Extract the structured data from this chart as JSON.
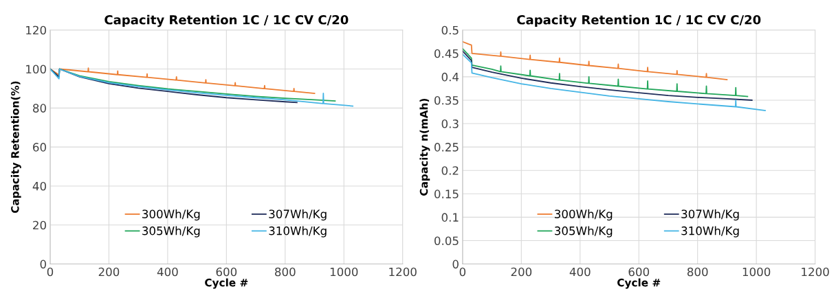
{
  "chart_data": [
    {
      "type": "line",
      "title": "Capacity Retention 1C / 1C CV C/20",
      "xlabel": "Cycle #",
      "ylabel": "Capacity Retention(%)",
      "xlim": [
        0,
        1200
      ],
      "xticks": [
        0,
        200,
        400,
        600,
        800,
        1000,
        1200
      ],
      "ylim": [
        0,
        120
      ],
      "yticks": [
        0,
        20,
        40,
        60,
        80,
        100,
        120
      ],
      "grid": true,
      "legend": "bottom",
      "marker": "none",
      "line_style": "solid",
      "series": [
        {
          "name": "300Wh/Kg",
          "color": "#ed7d31",
          "x": [
            0,
            30,
            32,
            129,
            130,
            131,
            229,
            230,
            231,
            329,
            330,
            331,
            429,
            430,
            431,
            529,
            530,
            531,
            629,
            630,
            631,
            729,
            730,
            731,
            829,
            830,
            831,
            900
          ],
          "values": [
            100,
            97,
            100,
            98.6,
            100.5,
            98.6,
            97.1,
            99,
            97.1,
            95.7,
            97.5,
            95.7,
            94.3,
            96,
            94.3,
            92.8,
            94.5,
            92.8,
            91.4,
            93,
            91.4,
            89.9,
            91.5,
            89.9,
            88.5,
            90,
            88.5,
            87.5
          ]
        },
        {
          "name": "305Wh/Kg",
          "color": "#22a65a",
          "x": [
            0,
            30,
            32,
            100,
            200,
            300,
            400,
            500,
            600,
            700,
            800,
            900,
            970
          ],
          "values": [
            100,
            96,
            100,
            96.5,
            93.5,
            91.5,
            89.8,
            88.5,
            87.2,
            86,
            85,
            84.2,
            83.6
          ]
        },
        {
          "name": "307Wh/Kg",
          "color": "#1f2d5a",
          "x": [
            0,
            30,
            32,
            100,
            200,
            300,
            400,
            500,
            600,
            700,
            800,
            840
          ],
          "values": [
            100,
            96,
            100,
            96,
            92.5,
            90.2,
            88.5,
            86.8,
            85.3,
            84.2,
            83.2,
            82.8
          ]
        },
        {
          "name": "310Wh/Kg",
          "color": "#45b5e5",
          "x": [
            0,
            30,
            32,
            100,
            200,
            300,
            400,
            500,
            600,
            700,
            800,
            929,
            930,
            931,
            1030
          ],
          "values": [
            100,
            95,
            100,
            96.2,
            93,
            91,
            89.3,
            87.8,
            86.5,
            85.3,
            84.2,
            82.3,
            87.5,
            82.3,
            81
          ]
        }
      ]
    },
    {
      "type": "line",
      "title": "Capacity Retention 1C / 1C CV C/20",
      "xlabel": "Cycle #",
      "ylabel": "Capacity n(mAh)",
      "xlim": [
        0,
        1200
      ],
      "xticks": [
        0,
        200,
        400,
        600,
        800,
        1000,
        1200
      ],
      "ylim": [
        0,
        0.5
      ],
      "yticks": [
        0,
        0.05,
        0.1,
        0.15,
        0.2,
        0.25,
        0.3,
        0.35,
        0.4,
        0.45,
        0.5
      ],
      "grid": true,
      "legend": "bottom",
      "marker": "none",
      "line_style": "solid",
      "series": [
        {
          "name": "300Wh/Kg",
          "color": "#ed7d31",
          "x": [
            0,
            20,
            30,
            32,
            129,
            130,
            131,
            229,
            230,
            231,
            329,
            330,
            331,
            429,
            430,
            431,
            529,
            530,
            531,
            629,
            630,
            631,
            729,
            730,
            731,
            829,
            830,
            831,
            900
          ],
          "values": [
            0.475,
            0.47,
            0.468,
            0.45,
            0.444,
            0.453,
            0.444,
            0.437,
            0.446,
            0.437,
            0.431,
            0.44,
            0.431,
            0.424,
            0.433,
            0.424,
            0.418,
            0.427,
            0.418,
            0.411,
            0.42,
            0.411,
            0.405,
            0.413,
            0.405,
            0.399,
            0.407,
            0.399,
            0.394
          ]
        },
        {
          "name": "305Wh/Kg",
          "color": "#22a65a",
          "x": [
            0,
            30,
            32,
            100,
            129,
            130,
            131,
            229,
            230,
            231,
            329,
            330,
            331,
            429,
            430,
            431,
            529,
            530,
            531,
            629,
            630,
            631,
            729,
            730,
            731,
            829,
            830,
            831,
            929,
            930,
            931,
            970
          ],
          "values": [
            0.46,
            0.44,
            0.425,
            0.416,
            0.411,
            0.423,
            0.411,
            0.402,
            0.414,
            0.402,
            0.393,
            0.407,
            0.393,
            0.386,
            0.4,
            0.386,
            0.38,
            0.395,
            0.38,
            0.374,
            0.391,
            0.374,
            0.369,
            0.385,
            0.369,
            0.364,
            0.38,
            0.364,
            0.36,
            0.377,
            0.36,
            0.358
          ]
        },
        {
          "name": "307Wh/Kg",
          "color": "#1f2d5a",
          "x": [
            0,
            30,
            32,
            100,
            200,
            300,
            400,
            500,
            600,
            700,
            800,
            900,
            985
          ],
          "values": [
            0.455,
            0.435,
            0.42,
            0.41,
            0.397,
            0.387,
            0.379,
            0.372,
            0.366,
            0.36,
            0.356,
            0.353,
            0.35
          ]
        },
        {
          "name": "310Wh/Kg",
          "color": "#45b5e5",
          "x": [
            0,
            30,
            32,
            100,
            200,
            300,
            400,
            500,
            600,
            700,
            800,
            929,
            930,
            931,
            1030
          ],
          "values": [
            0.448,
            0.43,
            0.408,
            0.398,
            0.385,
            0.375,
            0.367,
            0.359,
            0.353,
            0.347,
            0.342,
            0.336,
            0.35,
            0.336,
            0.328
          ]
        }
      ]
    }
  ]
}
